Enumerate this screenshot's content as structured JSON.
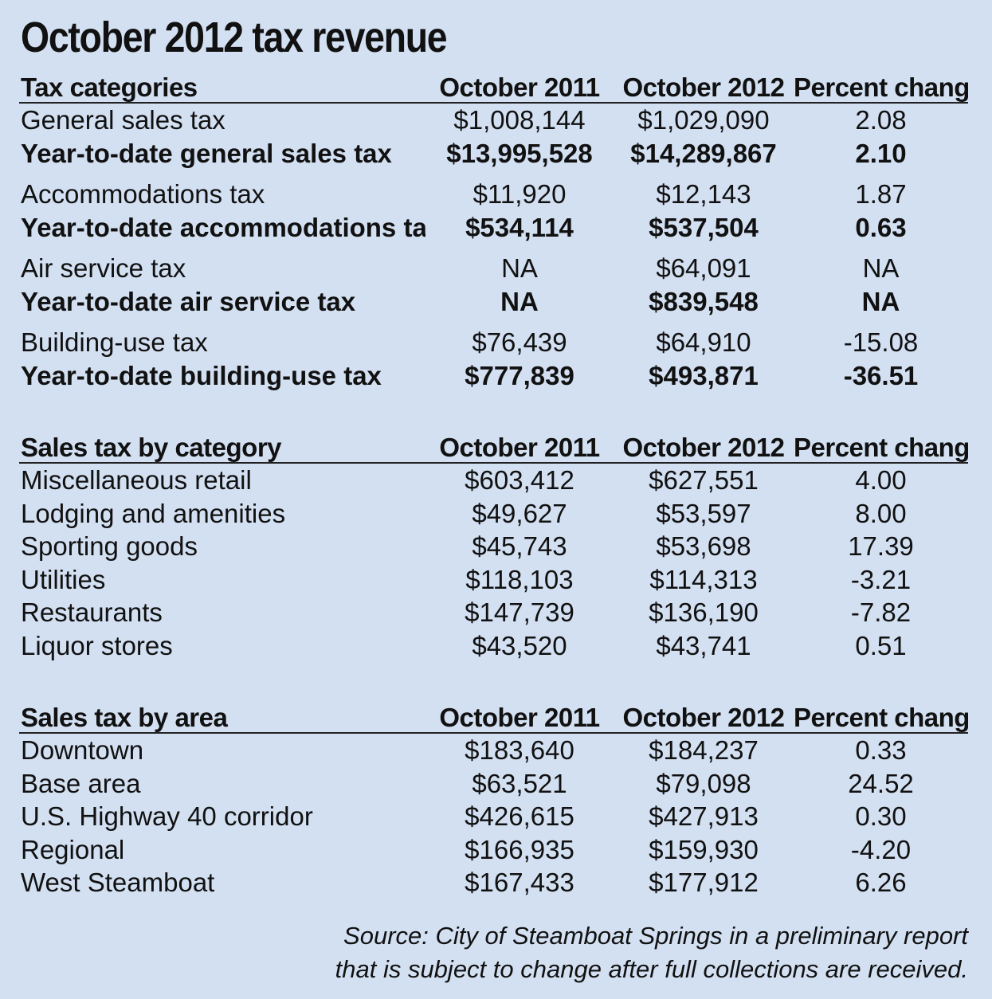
{
  "title": "October 2012 tax revenue",
  "tables": [
    {
      "headers": [
        "Tax categories",
        "October 2011",
        "October 2012",
        "Percent change"
      ],
      "rows": [
        {
          "label": "General sales tax",
          "v2011": "$1,008,144",
          "v2012": "$1,029,090",
          "pct": "2.08",
          "bold": false
        },
        {
          "label": "Year-to-date general sales tax",
          "v2011": "$13,995,528",
          "v2012": "$14,289,867",
          "pct": "2.10",
          "bold": true
        },
        {
          "label": "Accommodations tax",
          "v2011": "$11,920",
          "v2012": "$12,143",
          "pct": "1.87",
          "bold": false
        },
        {
          "label": "Year-to-date accommodations tax",
          "v2011": "$534,114",
          "v2012": "$537,504",
          "pct": "0.63",
          "bold": true
        },
        {
          "label": "Air service tax",
          "v2011": "NA",
          "v2012": "$64,091",
          "pct": "NA",
          "bold": false
        },
        {
          "label": "Year-to-date air service tax",
          "v2011": "NA",
          "v2012": "$839,548",
          "pct": "NA",
          "bold": true
        },
        {
          "label": "Building-use tax",
          "v2011": "$76,439",
          "v2012": "$64,910",
          "pct": "-15.08",
          "bold": false
        },
        {
          "label": "Year-to-date building-use tax",
          "v2011": "$777,839",
          "v2012": "$493,871",
          "pct": "-36.51",
          "bold": true
        }
      ]
    },
    {
      "headers": [
        "Sales tax by category",
        "October 2011",
        "October 2012",
        "Percent change"
      ],
      "rows": [
        {
          "label": "Miscellaneous retail",
          "v2011": "$603,412",
          "v2012": "$627,551",
          "pct": "4.00"
        },
        {
          "label": "Lodging and amenities",
          "v2011": "$49,627",
          "v2012": "$53,597",
          "pct": "8.00"
        },
        {
          "label": "Sporting goods",
          "v2011": "$45,743",
          "v2012": "$53,698",
          "pct": "17.39"
        },
        {
          "label": "Utilities",
          "v2011": "$118,103",
          "v2012": "$114,313",
          "pct": "-3.21"
        },
        {
          "label": "Restaurants",
          "v2011": "$147,739",
          "v2012": "$136,190",
          "pct": "-7.82"
        },
        {
          "label": "Liquor stores",
          "v2011": "$43,520",
          "v2012": "$43,741",
          "pct": "0.51"
        }
      ]
    },
    {
      "headers": [
        "Sales tax by area",
        "October 2011",
        "October 2012",
        "Percent change"
      ],
      "rows": [
        {
          "label": "Downtown",
          "v2011": "$183,640",
          "v2012": "$184,237",
          "pct": "0.33"
        },
        {
          "label": "Base area",
          "v2011": "$63,521",
          "v2012": "$79,098",
          "pct": "24.52"
        },
        {
          "label": "U.S. Highway 40 corridor",
          "v2011": "$426,615",
          "v2012": "$427,913",
          "pct": "0.30"
        },
        {
          "label": "Regional",
          "v2011": "$166,935",
          "v2012": "$159,930",
          "pct": "-4.20"
        },
        {
          "label": "West Steamboat",
          "v2011": "$167,433",
          "v2012": "$177,912",
          "pct": "6.26"
        }
      ]
    }
  ],
  "source_line1": "Source: City of Steamboat Springs in a preliminary report",
  "source_line2": "that is subject to change after full collections are received."
}
